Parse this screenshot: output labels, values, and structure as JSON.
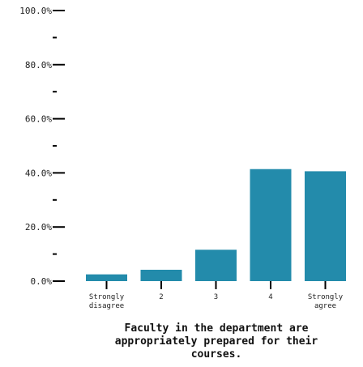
{
  "chart_data": {
    "type": "bar",
    "title_lines": [
      "Faculty in the department are",
      "appropriately prepared for their",
      "courses."
    ],
    "xlabel": "",
    "ylabel": "",
    "categories": [
      [
        "Strongly",
        "disagree"
      ],
      [
        "2"
      ],
      [
        "3"
      ],
      [
        "4"
      ],
      [
        "Strongly",
        "agree"
      ]
    ],
    "values": [
      2.5,
      4.2,
      11.6,
      41.4,
      40.6
    ],
    "ylim": [
      0,
      100
    ],
    "y_ticks": [
      0,
      20,
      40,
      60,
      80,
      100
    ],
    "y_minor_ticks": [
      10,
      30,
      50,
      70,
      90
    ],
    "y_tick_format": "percent-1dp",
    "bar_color": "#238bab",
    "grid": false,
    "legend": "none"
  }
}
